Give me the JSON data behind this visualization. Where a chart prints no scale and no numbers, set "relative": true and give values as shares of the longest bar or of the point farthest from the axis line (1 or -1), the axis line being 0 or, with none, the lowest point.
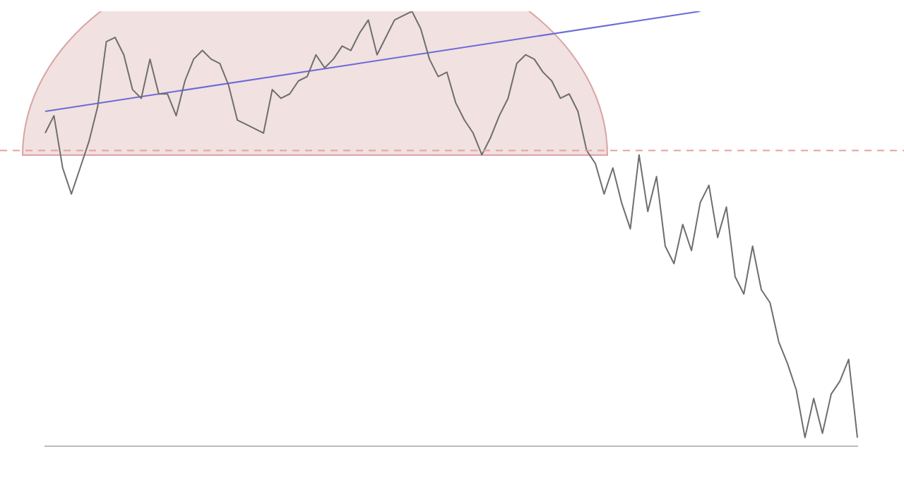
{
  "chart_data": {
    "type": "line",
    "relative": true,
    "grid": false,
    "legend": false,
    "marker": "none",
    "categories": [
      null,
      null,
      null,
      null,
      null,
      null,
      null,
      null,
      null,
      null,
      null,
      null,
      null,
      null,
      null,
      null,
      null,
      null,
      null,
      null,
      null,
      null,
      null,
      null,
      null,
      null,
      null,
      null,
      null,
      null,
      null,
      null,
      null,
      null,
      null,
      null,
      null,
      null,
      null,
      null,
      null,
      null,
      null,
      null,
      null,
      null,
      null,
      null,
      null,
      null,
      null,
      null,
      null,
      null,
      null,
      null,
      null,
      null,
      null,
      null,
      null,
      null,
      null,
      null,
      null,
      null,
      null,
      null,
      null,
      null,
      null,
      null,
      null,
      null,
      null,
      null,
      null,
      null,
      null,
      null,
      null,
      null,
      null,
      null,
      null,
      null,
      null,
      null,
      null,
      null,
      null,
      null,
      null,
      null
    ],
    "series": [
      {
        "color": "#6e6e6e",
        "values": [
          0.72,
          0.76,
          0.64,
          0.58,
          0.64,
          0.7,
          0.78,
          0.93,
          0.94,
          0.9,
          0.82,
          0.8,
          0.89,
          0.81,
          0.81,
          0.76,
          0.84,
          0.89,
          0.91,
          0.89,
          0.88,
          0.83,
          0.75,
          0.74,
          0.73,
          0.72,
          0.82,
          0.8,
          0.81,
          0.84,
          0.85,
          0.9,
          0.87,
          0.89,
          0.92,
          0.91,
          0.95,
          0.98,
          0.9,
          0.94,
          0.98,
          0.99,
          1.0,
          0.96,
          0.89,
          0.85,
          0.86,
          0.79,
          0.75,
          0.72,
          0.67,
          0.71,
          0.76,
          0.8,
          0.88,
          0.9,
          0.89,
          0.86,
          0.84,
          0.8,
          0.81,
          0.77,
          0.68,
          0.65,
          0.58,
          0.64,
          0.56,
          0.5,
          0.67,
          0.54,
          0.62,
          0.46,
          0.42,
          0.51,
          0.45,
          0.56,
          0.6,
          0.48,
          0.55,
          0.39,
          0.35,
          0.46,
          0.36,
          0.33,
          0.24,
          0.19,
          0.13,
          0.02,
          0.11,
          0.03,
          0.12,
          0.15,
          0.2,
          0.02
        ]
      },
      {
        "type": "line",
        "color": "#6b6bd6",
        "values": [
          0.77,
          null,
          null,
          null,
          null,
          null,
          null,
          null,
          null,
          null,
          null,
          null,
          null,
          null,
          null,
          null,
          null,
          null,
          null,
          null,
          null,
          null,
          null,
          null,
          null,
          null,
          null,
          null,
          null,
          null,
          null,
          null,
          null,
          null,
          null,
          null,
          null,
          null,
          null,
          null,
          null,
          null,
          null,
          null,
          null,
          null,
          null,
          null,
          null,
          null,
          null,
          null,
          null,
          null,
          null,
          null,
          null,
          null,
          null,
          null,
          null,
          null,
          null,
          null,
          null,
          null,
          null,
          null,
          null,
          null,
          null,
          null,
          null,
          null,
          null,
          1.0,
          null,
          null,
          null,
          null,
          null,
          null,
          null,
          null,
          null,
          null,
          null,
          null,
          null,
          null,
          null,
          null,
          null,
          null
        ]
      }
    ],
    "ref_lines": [
      {
        "axis": "y",
        "value": 0.68,
        "color": "#e8a0a0",
        "line_style": "dashed"
      }
    ]
  }
}
